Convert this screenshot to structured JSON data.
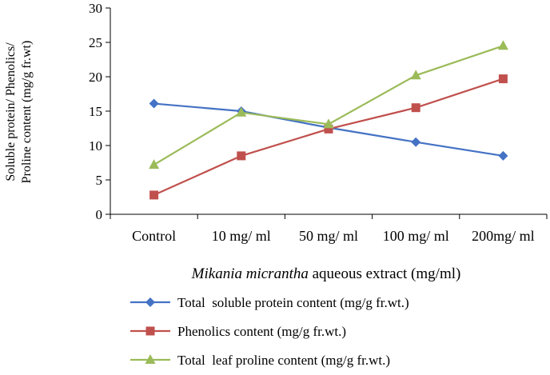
{
  "chart_data": {
    "type": "line",
    "categories": [
      "Control",
      "10 mg/ ml",
      "50 mg/ ml",
      "100 mg/ ml",
      "200mg/ ml"
    ],
    "series": [
      {
        "name": "Total  soluble protein content (mg/g fr.wt.)",
        "values": [
          16.1,
          15.0,
          12.6,
          10.5,
          8.5
        ],
        "color": "#4472C4",
        "marker": "diamond"
      },
      {
        "name": "Phenolics content (mg/g fr.wt.)",
        "values": [
          2.8,
          8.5,
          12.4,
          15.5,
          19.7
        ],
        "color": "#C0504D",
        "marker": "square"
      },
      {
        "name": "Total  leaf proline content (mg/g fr.wt.)",
        "values": [
          7.2,
          14.8,
          13.1,
          20.2,
          24.5
        ],
        "color": "#9BBB59",
        "marker": "triangle"
      }
    ],
    "ylim": [
      0,
      30
    ],
    "yticks": [
      0,
      5,
      10,
      15,
      20,
      25,
      30
    ],
    "ylabel_lines": [
      "Soluble protein/ Phenolics/",
      "Proline content (mg/g fr.wt)"
    ],
    "xlabel_italic": "Mikania micrantha",
    "xlabel_rest": " aqueous extract (mg/ml)",
    "grid": false,
    "legend_position": "bottom"
  }
}
